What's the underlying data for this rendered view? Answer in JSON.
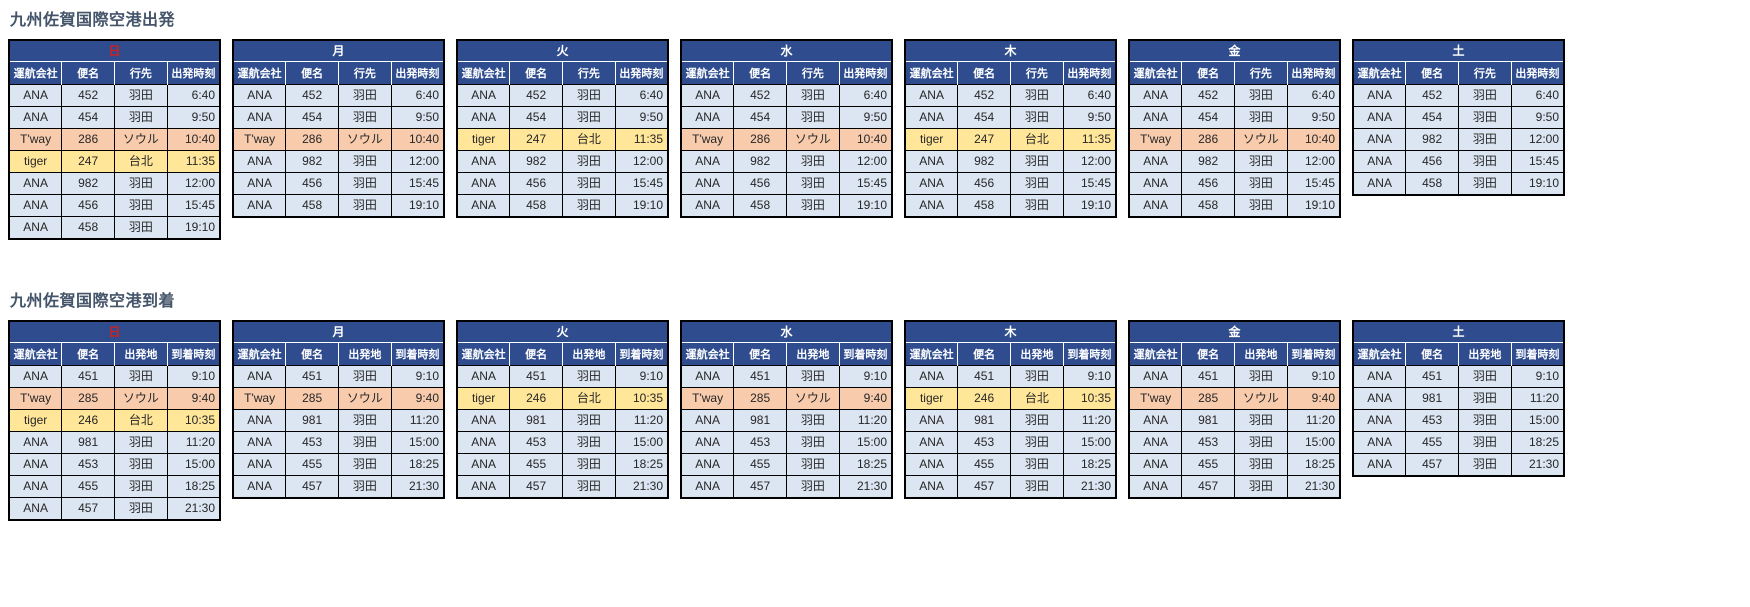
{
  "colors": {
    "header_blue": "#2E4C8E",
    "ana_row": "#DCE6F2",
    "tway_row": "#F8CBAD",
    "tiger_row": "#FFE699",
    "sunday_red": "#D02020",
    "weekday_white": "#FFFFFF",
    "title_color": "#44546A",
    "cell_border": "#000000"
  },
  "sections": [
    {
      "id": "departures",
      "title": "九州佐賀国際空港出発",
      "columns": [
        "運航会社",
        "便名",
        "行先",
        "出発時刻"
      ],
      "tables": [
        {
          "day": "日",
          "day_color": "#D02020",
          "rows": [
            {
              "airline": "ANA",
              "flight": "452",
              "place": "羽田",
              "time": "6:40",
              "type": "ana"
            },
            {
              "airline": "ANA",
              "flight": "454",
              "place": "羽田",
              "time": "9:50",
              "type": "ana"
            },
            {
              "airline": "T'way",
              "flight": "286",
              "place": "ソウル",
              "time": "10:40",
              "type": "tway"
            },
            {
              "airline": "tiger",
              "flight": "247",
              "place": "台北",
              "time": "11:35",
              "type": "tiger"
            },
            {
              "airline": "ANA",
              "flight": "982",
              "place": "羽田",
              "time": "12:00",
              "type": "ana"
            },
            {
              "airline": "ANA",
              "flight": "456",
              "place": "羽田",
              "time": "15:45",
              "type": "ana"
            },
            {
              "airline": "ANA",
              "flight": "458",
              "place": "羽田",
              "time": "19:10",
              "type": "ana"
            }
          ]
        },
        {
          "day": "月",
          "day_color": "#FFFFFF",
          "rows": [
            {
              "airline": "ANA",
              "flight": "452",
              "place": "羽田",
              "time": "6:40",
              "type": "ana"
            },
            {
              "airline": "ANA",
              "flight": "454",
              "place": "羽田",
              "time": "9:50",
              "type": "ana"
            },
            {
              "airline": "T'way",
              "flight": "286",
              "place": "ソウル",
              "time": "10:40",
              "type": "tway"
            },
            {
              "airline": "ANA",
              "flight": "982",
              "place": "羽田",
              "time": "12:00",
              "type": "ana"
            },
            {
              "airline": "ANA",
              "flight": "456",
              "place": "羽田",
              "time": "15:45",
              "type": "ana"
            },
            {
              "airline": "ANA",
              "flight": "458",
              "place": "羽田",
              "time": "19:10",
              "type": "ana"
            }
          ]
        },
        {
          "day": "火",
          "day_color": "#FFFFFF",
          "rows": [
            {
              "airline": "ANA",
              "flight": "452",
              "place": "羽田",
              "time": "6:40",
              "type": "ana"
            },
            {
              "airline": "ANA",
              "flight": "454",
              "place": "羽田",
              "time": "9:50",
              "type": "ana"
            },
            {
              "airline": "tiger",
              "flight": "247",
              "place": "台北",
              "time": "11:35",
              "type": "tiger"
            },
            {
              "airline": "ANA",
              "flight": "982",
              "place": "羽田",
              "time": "12:00",
              "type": "ana"
            },
            {
              "airline": "ANA",
              "flight": "456",
              "place": "羽田",
              "time": "15:45",
              "type": "ana"
            },
            {
              "airline": "ANA",
              "flight": "458",
              "place": "羽田",
              "time": "19:10",
              "type": "ana"
            }
          ]
        },
        {
          "day": "水",
          "day_color": "#FFFFFF",
          "rows": [
            {
              "airline": "ANA",
              "flight": "452",
              "place": "羽田",
              "time": "6:40",
              "type": "ana"
            },
            {
              "airline": "ANA",
              "flight": "454",
              "place": "羽田",
              "time": "9:50",
              "type": "ana"
            },
            {
              "airline": "T'way",
              "flight": "286",
              "place": "ソウル",
              "time": "10:40",
              "type": "tway"
            },
            {
              "airline": "ANA",
              "flight": "982",
              "place": "羽田",
              "time": "12:00",
              "type": "ana"
            },
            {
              "airline": "ANA",
              "flight": "456",
              "place": "羽田",
              "time": "15:45",
              "type": "ana"
            },
            {
              "airline": "ANA",
              "flight": "458",
              "place": "羽田",
              "time": "19:10",
              "type": "ana"
            }
          ]
        },
        {
          "day": "木",
          "day_color": "#FFFFFF",
          "rows": [
            {
              "airline": "ANA",
              "flight": "452",
              "place": "羽田",
              "time": "6:40",
              "type": "ana"
            },
            {
              "airline": "ANA",
              "flight": "454",
              "place": "羽田",
              "time": "9:50",
              "type": "ana"
            },
            {
              "airline": "tiger",
              "flight": "247",
              "place": "台北",
              "time": "11:35",
              "type": "tiger"
            },
            {
              "airline": "ANA",
              "flight": "982",
              "place": "羽田",
              "time": "12:00",
              "type": "ana"
            },
            {
              "airline": "ANA",
              "flight": "456",
              "place": "羽田",
              "time": "15:45",
              "type": "ana"
            },
            {
              "airline": "ANA",
              "flight": "458",
              "place": "羽田",
              "time": "19:10",
              "type": "ana"
            }
          ]
        },
        {
          "day": "金",
          "day_color": "#FFFFFF",
          "rows": [
            {
              "airline": "ANA",
              "flight": "452",
              "place": "羽田",
              "time": "6:40",
              "type": "ana"
            },
            {
              "airline": "ANA",
              "flight": "454",
              "place": "羽田",
              "time": "9:50",
              "type": "ana"
            },
            {
              "airline": "T'way",
              "flight": "286",
              "place": "ソウル",
              "time": "10:40",
              "type": "tway"
            },
            {
              "airline": "ANA",
              "flight": "982",
              "place": "羽田",
              "time": "12:00",
              "type": "ana"
            },
            {
              "airline": "ANA",
              "flight": "456",
              "place": "羽田",
              "time": "15:45",
              "type": "ana"
            },
            {
              "airline": "ANA",
              "flight": "458",
              "place": "羽田",
              "time": "19:10",
              "type": "ana"
            }
          ]
        },
        {
          "day": "土",
          "day_color": "#FFFFFF",
          "rows": [
            {
              "airline": "ANA",
              "flight": "452",
              "place": "羽田",
              "time": "6:40",
              "type": "ana"
            },
            {
              "airline": "ANA",
              "flight": "454",
              "place": "羽田",
              "time": "9:50",
              "type": "ana"
            },
            {
              "airline": "ANA",
              "flight": "982",
              "place": "羽田",
              "time": "12:00",
              "type": "ana"
            },
            {
              "airline": "ANA",
              "flight": "456",
              "place": "羽田",
              "time": "15:45",
              "type": "ana"
            },
            {
              "airline": "ANA",
              "flight": "458",
              "place": "羽田",
              "time": "19:10",
              "type": "ana"
            }
          ]
        }
      ]
    },
    {
      "id": "arrivals",
      "title": "九州佐賀国際空港到着",
      "columns": [
        "運航会社",
        "便名",
        "出発地",
        "到着時刻"
      ],
      "tables": [
        {
          "day": "日",
          "day_color": "#D02020",
          "rows": [
            {
              "airline": "ANA",
              "flight": "451",
              "place": "羽田",
              "time": "9:10",
              "type": "ana"
            },
            {
              "airline": "T'way",
              "flight": "285",
              "place": "ソウル",
              "time": "9:40",
              "type": "tway"
            },
            {
              "airline": "tiger",
              "flight": "246",
              "place": "台北",
              "time": "10:35",
              "type": "tiger"
            },
            {
              "airline": "ANA",
              "flight": "981",
              "place": "羽田",
              "time": "11:20",
              "type": "ana"
            },
            {
              "airline": "ANA",
              "flight": "453",
              "place": "羽田",
              "time": "15:00",
              "type": "ana"
            },
            {
              "airline": "ANA",
              "flight": "455",
              "place": "羽田",
              "time": "18:25",
              "type": "ana"
            },
            {
              "airline": "ANA",
              "flight": "457",
              "place": "羽田",
              "time": "21:30",
              "type": "ana"
            }
          ]
        },
        {
          "day": "月",
          "day_color": "#FFFFFF",
          "rows": [
            {
              "airline": "ANA",
              "flight": "451",
              "place": "羽田",
              "time": "9:10",
              "type": "ana"
            },
            {
              "airline": "T'way",
              "flight": "285",
              "place": "ソウル",
              "time": "9:40",
              "type": "tway"
            },
            {
              "airline": "ANA",
              "flight": "981",
              "place": "羽田",
              "time": "11:20",
              "type": "ana"
            },
            {
              "airline": "ANA",
              "flight": "453",
              "place": "羽田",
              "time": "15:00",
              "type": "ana"
            },
            {
              "airline": "ANA",
              "flight": "455",
              "place": "羽田",
              "time": "18:25",
              "type": "ana"
            },
            {
              "airline": "ANA",
              "flight": "457",
              "place": "羽田",
              "time": "21:30",
              "type": "ana"
            }
          ]
        },
        {
          "day": "火",
          "day_color": "#FFFFFF",
          "rows": [
            {
              "airline": "ANA",
              "flight": "451",
              "place": "羽田",
              "time": "9:10",
              "type": "ana"
            },
            {
              "airline": "tiger",
              "flight": "246",
              "place": "台北",
              "time": "10:35",
              "type": "tiger"
            },
            {
              "airline": "ANA",
              "flight": "981",
              "place": "羽田",
              "time": "11:20",
              "type": "ana"
            },
            {
              "airline": "ANA",
              "flight": "453",
              "place": "羽田",
              "time": "15:00",
              "type": "ana"
            },
            {
              "airline": "ANA",
              "flight": "455",
              "place": "羽田",
              "time": "18:25",
              "type": "ana"
            },
            {
              "airline": "ANA",
              "flight": "457",
              "place": "羽田",
              "time": "21:30",
              "type": "ana"
            }
          ]
        },
        {
          "day": "水",
          "day_color": "#FFFFFF",
          "rows": [
            {
              "airline": "ANA",
              "flight": "451",
              "place": "羽田",
              "time": "9:10",
              "type": "ana"
            },
            {
              "airline": "T'way",
              "flight": "285",
              "place": "ソウル",
              "time": "9:40",
              "type": "tway"
            },
            {
              "airline": "ANA",
              "flight": "981",
              "place": "羽田",
              "time": "11:20",
              "type": "ana"
            },
            {
              "airline": "ANA",
              "flight": "453",
              "place": "羽田",
              "time": "15:00",
              "type": "ana"
            },
            {
              "airline": "ANA",
              "flight": "455",
              "place": "羽田",
              "time": "18:25",
              "type": "ana"
            },
            {
              "airline": "ANA",
              "flight": "457",
              "place": "羽田",
              "time": "21:30",
              "type": "ana"
            }
          ]
        },
        {
          "day": "木",
          "day_color": "#FFFFFF",
          "rows": [
            {
              "airline": "ANA",
              "flight": "451",
              "place": "羽田",
              "time": "9:10",
              "type": "ana"
            },
            {
              "airline": "tiger",
              "flight": "246",
              "place": "台北",
              "time": "10:35",
              "type": "tiger"
            },
            {
              "airline": "ANA",
              "flight": "981",
              "place": "羽田",
              "time": "11:20",
              "type": "ana"
            },
            {
              "airline": "ANA",
              "flight": "453",
              "place": "羽田",
              "time": "15:00",
              "type": "ana"
            },
            {
              "airline": "ANA",
              "flight": "455",
              "place": "羽田",
              "time": "18:25",
              "type": "ana"
            },
            {
              "airline": "ANA",
              "flight": "457",
              "place": "羽田",
              "time": "21:30",
              "type": "ana"
            }
          ]
        },
        {
          "day": "金",
          "day_color": "#FFFFFF",
          "rows": [
            {
              "airline": "ANA",
              "flight": "451",
              "place": "羽田",
              "time": "9:10",
              "type": "ana"
            },
            {
              "airline": "T'way",
              "flight": "285",
              "place": "ソウル",
              "time": "9:40",
              "type": "tway"
            },
            {
              "airline": "ANA",
              "flight": "981",
              "place": "羽田",
              "time": "11:20",
              "type": "ana"
            },
            {
              "airline": "ANA",
              "flight": "453",
              "place": "羽田",
              "time": "15:00",
              "type": "ana"
            },
            {
              "airline": "ANA",
              "flight": "455",
              "place": "羽田",
              "time": "18:25",
              "type": "ana"
            },
            {
              "airline": "ANA",
              "flight": "457",
              "place": "羽田",
              "time": "21:30",
              "type": "ana"
            }
          ]
        },
        {
          "day": "土",
          "day_color": "#FFFFFF",
          "rows": [
            {
              "airline": "ANA",
              "flight": "451",
              "place": "羽田",
              "time": "9:10",
              "type": "ana"
            },
            {
              "airline": "ANA",
              "flight": "981",
              "place": "羽田",
              "time": "11:20",
              "type": "ana"
            },
            {
              "airline": "ANA",
              "flight": "453",
              "place": "羽田",
              "time": "15:00",
              "type": "ana"
            },
            {
              "airline": "ANA",
              "flight": "455",
              "place": "羽田",
              "time": "18:25",
              "type": "ana"
            },
            {
              "airline": "ANA",
              "flight": "457",
              "place": "羽田",
              "time": "21:30",
              "type": "ana"
            }
          ]
        }
      ]
    }
  ]
}
